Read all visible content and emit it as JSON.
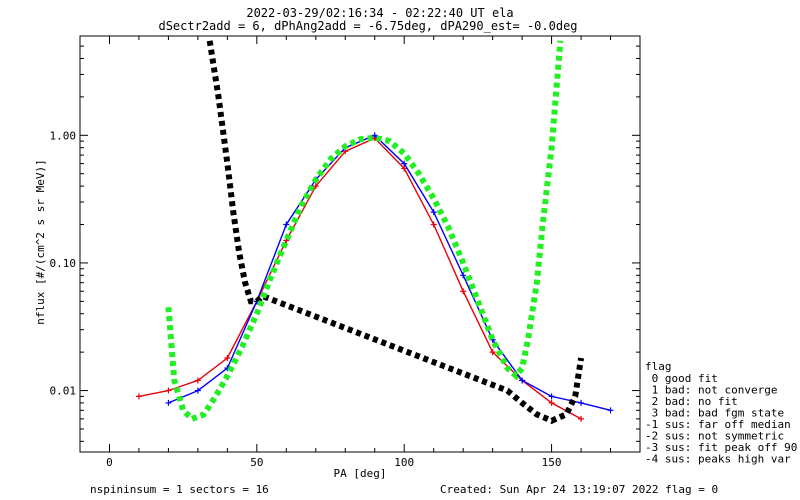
{
  "header": {
    "title_line1": "2022-03-29/02:16:34 - 02:22:40 UT ela",
    "title_line2": "dSectr2add = 6, dPhAng2add = -6.75deg, dPA290_est=  -0.0deg"
  },
  "footer": {
    "left": "nspininsum =  1  sectors = 16",
    "right": "Created: Sun Apr 24 13:19:07 2022   flag = 0"
  },
  "legend": {
    "title": "flag",
    "items": [
      " 0 good fit",
      " 1 bad: not converge",
      " 2 bad: no fit",
      " 3 bad: bad fgm state",
      "-1 sus: far off median",
      "-2 sus: not symmetric",
      "-3 sus: fit peak off 90",
      "-4 sus: peaks high var"
    ]
  },
  "colors": {
    "red": "#e8000b",
    "blue": "#0000ff",
    "black": "#000000",
    "green": "#22ee22"
  },
  "chart_data": {
    "type": "line",
    "title": "",
    "xlabel": "PA [deg]",
    "ylabel": "nflux [#/(cm^2 s sr MeV)]",
    "xlim": [
      -10,
      180
    ],
    "ylim": [
      0.0033,
      6.0
    ],
    "yscale": "log",
    "x_ticks": [
      0,
      50,
      100,
      150
    ],
    "x_tick_labels": [
      "0",
      "50",
      "100",
      "150"
    ],
    "y_ticks": [
      0.01,
      0.1,
      1.0
    ],
    "y_tick_labels": [
      "0.01",
      "0.10",
      "1.00"
    ],
    "grid": false,
    "series": [
      {
        "color": "red",
        "x": [
          10,
          20,
          30,
          40,
          50,
          60,
          70,
          80,
          90,
          100,
          110,
          120,
          130,
          140,
          150,
          160
        ],
        "y": [
          0.009,
          0.01,
          0.012,
          0.018,
          0.05,
          0.15,
          0.4,
          0.75,
          0.95,
          0.55,
          0.2,
          0.06,
          0.02,
          0.012,
          0.008,
          0.006
        ]
      },
      {
        "color": "blue",
        "x": [
          20,
          30,
          40,
          50,
          60,
          70,
          80,
          90,
          100,
          110,
          120,
          130,
          140,
          150,
          160,
          170
        ],
        "y": [
          0.008,
          0.01,
          0.015,
          0.05,
          0.2,
          0.45,
          0.8,
          1.0,
          0.6,
          0.25,
          0.08,
          0.025,
          0.012,
          0.009,
          0.008,
          0.007
        ]
      },
      {
        "color": "black",
        "x": [
          34,
          37,
          40,
          42,
          44,
          46,
          48,
          50,
          52,
          135,
          140,
          145,
          150,
          155,
          158,
          160
        ],
        "y": [
          5.5,
          2.0,
          0.6,
          0.25,
          0.12,
          0.07,
          0.05,
          0.05,
          0.055,
          0.01,
          0.008,
          0.0065,
          0.0058,
          0.0065,
          0.009,
          0.018
        ]
      },
      {
        "color": "green",
        "x": [
          20,
          22,
          25,
          28,
          32,
          36,
          40,
          45,
          50,
          55,
          60,
          65,
          70,
          75,
          80,
          85,
          90,
          95,
          100,
          105,
          110,
          115,
          120,
          125,
          130,
          135,
          138,
          140,
          142,
          145,
          147,
          150,
          153
        ],
        "y": [
          0.045,
          0.012,
          0.007,
          0.006,
          0.0065,
          0.009,
          0.013,
          0.022,
          0.04,
          0.08,
          0.15,
          0.28,
          0.45,
          0.65,
          0.82,
          0.93,
          0.96,
          0.9,
          0.72,
          0.5,
          0.32,
          0.19,
          0.1,
          0.05,
          0.025,
          0.015,
          0.013,
          0.015,
          0.025,
          0.07,
          0.2,
          0.8,
          5.5
        ]
      }
    ]
  }
}
